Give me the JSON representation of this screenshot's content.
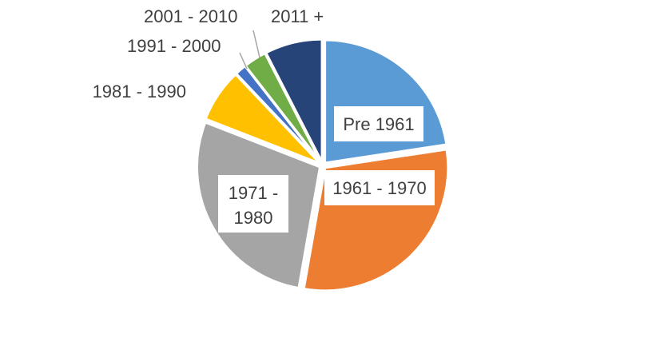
{
  "chart_data": {
    "type": "pie",
    "title": "",
    "start_angle_deg": 0,
    "direction": "clockwise",
    "slices": [
      {
        "label": "Pre 1961",
        "value": 22.5,
        "color": "#5B9BD5"
      },
      {
        "label": "1961 - 1970",
        "value": 30.0,
        "color": "#ED7D31"
      },
      {
        "label": "1971 - 1980",
        "value": 28.0,
        "color": "#A5A5A5"
      },
      {
        "label": "1981 - 1990",
        "value": 7.0,
        "color": "#FFC000"
      },
      {
        "label": "1991 - 2000",
        "value": 1.5,
        "color": "#4472C4"
      },
      {
        "label": "2001 - 2010",
        "value": 3.0,
        "color": "#70AD47"
      },
      {
        "label": "2011 +",
        "value": 7.5,
        "color": "#264478"
      }
    ]
  }
}
